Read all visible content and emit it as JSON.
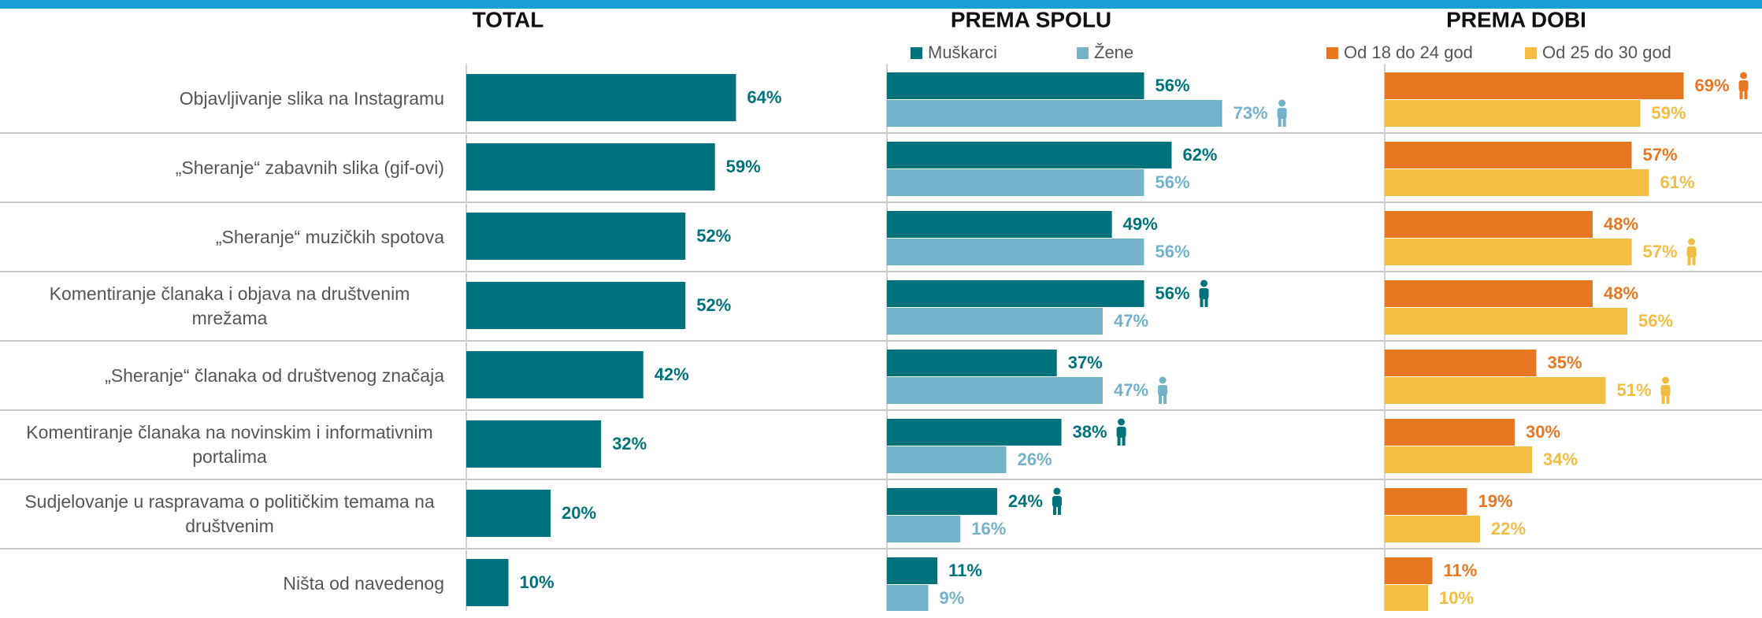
{
  "chart_data": [
    {
      "type": "bar",
      "title": "TOTAL",
      "categories": [
        "Objavljivanje slika na Instagramu",
        "„Sheranje“ zabavnih slika (gif-ovi)",
        "„Sheranje“ muzičkih spotova",
        "Komentiranje članaka i objava na društvenim mrežama",
        "„Sheranje“ članaka od društvenog značaja",
        "Komentiranje članaka na novinskim i informativnim portalima",
        "Sudjelovanje u raspravama o političkim temama na društvenim",
        "Ništa od navedenog"
      ],
      "values": [
        64,
        59,
        52,
        52,
        42,
        32,
        20,
        10
      ],
      "value_labels": [
        "64%",
        "59%",
        "52%",
        "52%",
        "42%",
        "32%",
        "20%",
        "10%"
      ],
      "color": "#00727b",
      "xlim": [
        0,
        100
      ]
    },
    {
      "type": "grouped-bar",
      "title": "PREMA SPOLU",
      "xlim": [
        0,
        100
      ],
      "series": [
        {
          "name": "Muškarci",
          "color": "#00727b",
          "values": [
            56,
            62,
            49,
            56,
            37,
            38,
            24,
            11
          ],
          "value_labels": [
            "56%",
            "62%",
            "49%",
            "56%",
            "37%",
            "38%",
            "24%",
            "11%"
          ]
        },
        {
          "name": "Žene",
          "color": "#74b2cc",
          "values": [
            73,
            56,
            56,
            47,
            47,
            26,
            16,
            9
          ],
          "value_labels": [
            "73%",
            "56%",
            "56%",
            "47%",
            "47%",
            "26%",
            "16%",
            "9%"
          ]
        }
      ]
    },
    {
      "type": "grouped-bar",
      "title": "PREMA DOBI",
      "xlim": [
        0,
        100
      ],
      "series": [
        {
          "name": "Od 18 do 24 god",
          "color": "#e87722",
          "values": [
            69,
            57,
            48,
            48,
            35,
            30,
            19,
            11
          ],
          "value_labels": [
            "69%",
            "57%",
            "48%",
            "48%",
            "35%",
            "30%",
            "19%",
            "11%"
          ]
        },
        {
          "name": "Od 25 do 30 god",
          "color": "#f2bd42",
          "values": [
            59,
            61,
            57,
            56,
            51,
            34,
            22,
            10
          ],
          "value_labels": [
            "59%",
            "61%",
            "57%",
            "56%",
            "51%",
            "34%",
            "22%",
            "10%"
          ]
        }
      ]
    }
  ]
}
